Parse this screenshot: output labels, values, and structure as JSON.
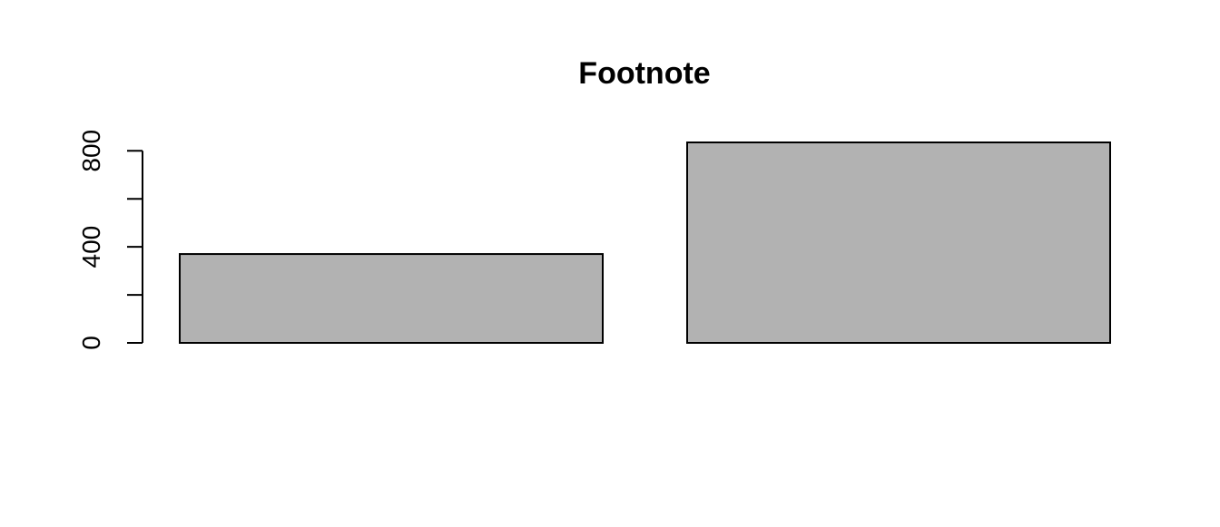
{
  "chart_data": {
    "type": "bar",
    "title": "Footnote",
    "xlabel": "",
    "ylabel": "",
    "categories": [
      "",
      ""
    ],
    "values": [
      370,
      835
    ],
    "ylim": [
      0,
      835
    ],
    "y_ticks": [
      0,
      200,
      400,
      600,
      800
    ],
    "y_tick_labels": [
      "0",
      "",
      "400",
      "",
      "800"
    ],
    "bar_color": "#b2b2b2",
    "grid": false,
    "legend": "none"
  }
}
